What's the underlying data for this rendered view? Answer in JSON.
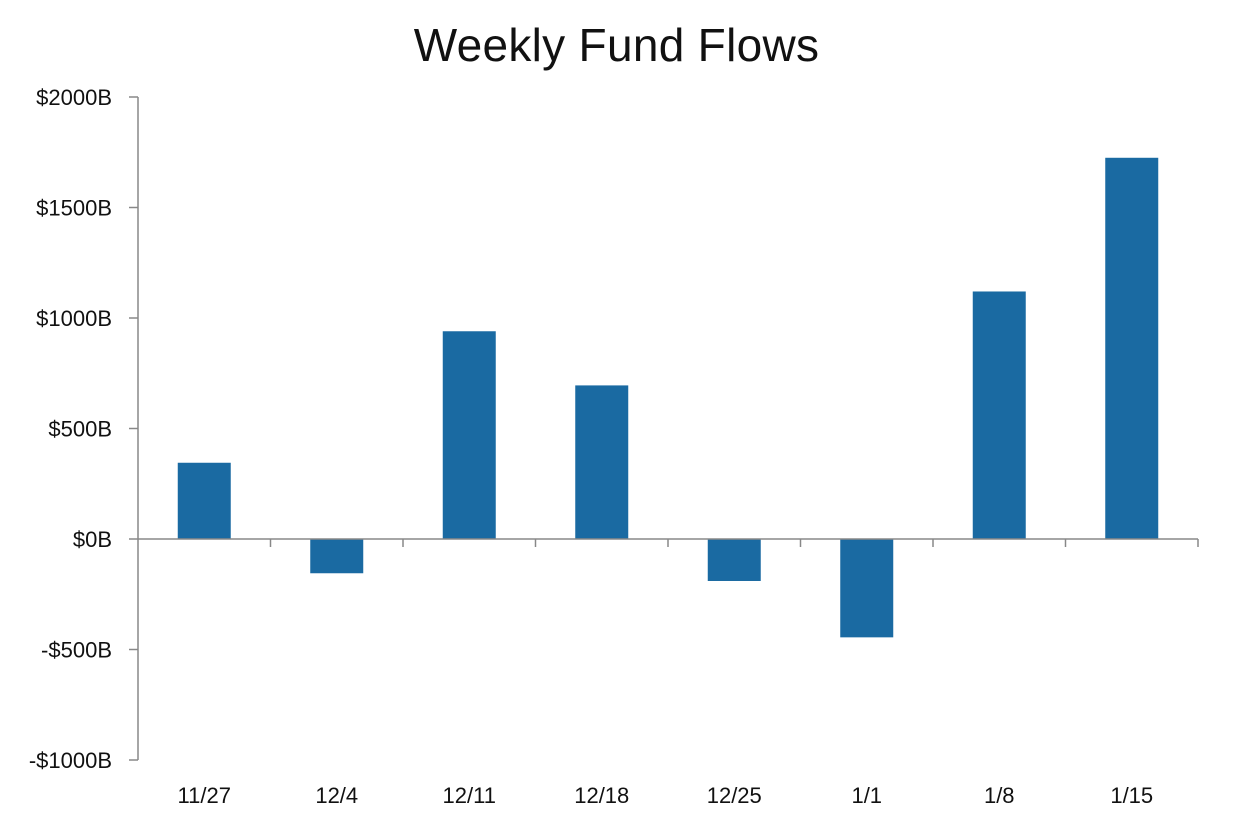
{
  "chart_data": {
    "type": "bar",
    "title": "Weekly Fund Flows",
    "xlabel": "",
    "ylabel": "",
    "categories": [
      "11/27",
      "12/4",
      "12/11",
      "12/18",
      "12/25",
      "1/1",
      "1/8",
      "1/15"
    ],
    "values": [
      345,
      -155,
      940,
      695,
      -190,
      -445,
      1120,
      1725
    ],
    "ylim": [
      -1000,
      2000
    ],
    "yticks": [
      2000,
      1500,
      1000,
      500,
      0,
      -500,
      -1000
    ],
    "ytick_labels": [
      "$2000B",
      "$1500B",
      "$1000B",
      "$500B",
      "$0B",
      "-$500B",
      "-$1000B"
    ],
    "bar_color": "#1a6aa2",
    "axis_color": "#888888",
    "grid": false,
    "legend": "none"
  }
}
